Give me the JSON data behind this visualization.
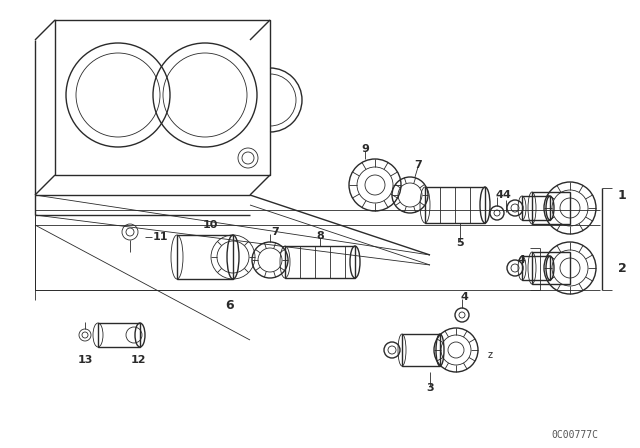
{
  "bg_color": "#ffffff",
  "line_color": "#2a2a2a",
  "watermark": "0C00777C",
  "fig_width": 6.4,
  "fig_height": 4.48
}
